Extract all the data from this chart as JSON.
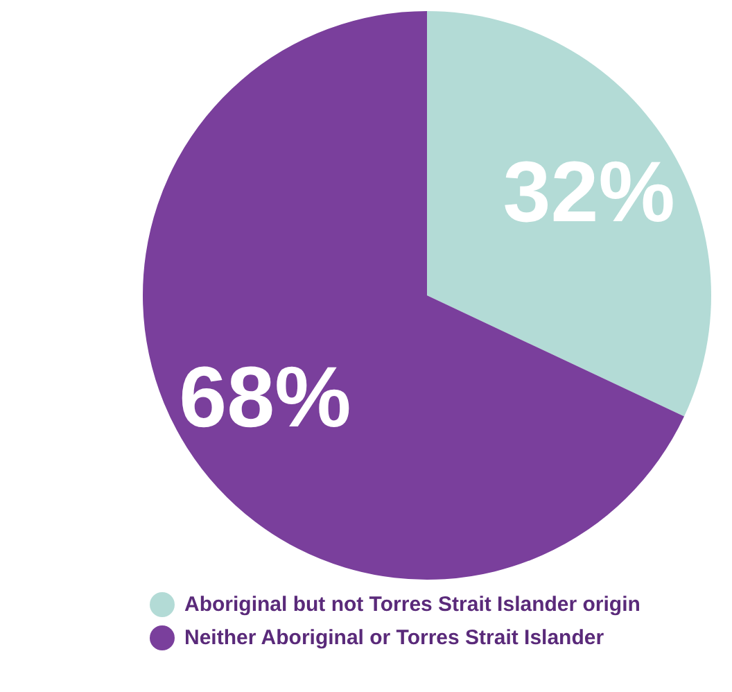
{
  "chart_data": {
    "type": "pie",
    "categories": [
      "Aboriginal but not Torres Strait Islander origin",
      "Neither Aboriginal or Torres Strait Islander"
    ],
    "values": [
      32,
      68
    ],
    "colors": [
      "#b3dbd6",
      "#7a3f9c"
    ],
    "value_labels": [
      "32%",
      "68%"
    ],
    "legend": "bottom"
  }
}
